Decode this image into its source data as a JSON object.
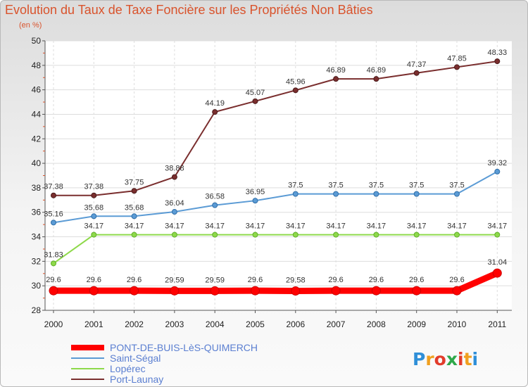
{
  "chart_data": {
    "type": "line",
    "title": "Evolution du Taux de Taxe Foncière sur les Propriétés Non Bâties",
    "ylabel": "(en %)",
    "xlabel": "",
    "x": [
      "2000",
      "2001",
      "2002",
      "2003",
      "2004",
      "2005",
      "2006",
      "2007",
      "2008",
      "2009",
      "2010",
      "2011"
    ],
    "ylim": [
      28,
      50
    ],
    "yticks": [
      28,
      30,
      32,
      34,
      36,
      38,
      40,
      42,
      44,
      46,
      48,
      50
    ],
    "series": [
      {
        "name": "PONT-DE-BUIS-LèS-QUIMERCH",
        "color": "#ff0000",
        "values": [
          29.6,
          29.6,
          29.6,
          29.59,
          29.59,
          29.6,
          29.58,
          29.6,
          29.6,
          29.6,
          29.6,
          31.04
        ],
        "labels": [
          "29.6",
          "29.6",
          "29.6",
          "29.59",
          "29.59",
          "29.6",
          "29.58",
          "29.6",
          "29.6",
          "29.6",
          "29.6",
          "31.04"
        ]
      },
      {
        "name": "Saint-Ségal",
        "color": "#5b9bd5",
        "values": [
          35.16,
          35.68,
          35.68,
          36.04,
          36.58,
          36.95,
          37.5,
          37.5,
          37.5,
          37.5,
          37.5,
          39.32
        ],
        "labels": [
          "35.16",
          "35.68",
          "35.68",
          "36.04",
          "36.58",
          "36.95",
          "37.5",
          "37.5",
          "37.5",
          "37.5",
          "37.5",
          "39.32"
        ]
      },
      {
        "name": "Lopérec",
        "color": "#8ed94a",
        "values": [
          31.83,
          34.17,
          34.17,
          34.17,
          34.17,
          34.17,
          34.17,
          34.17,
          34.17,
          34.17,
          34.17,
          34.17
        ],
        "labels": [
          "31.83",
          "34.17",
          "34.17",
          "34.17",
          "34.17",
          "34.17",
          "34.17",
          "34.17",
          "34.17",
          "34.17",
          "34.17",
          "34.17"
        ]
      },
      {
        "name": "Port-Launay",
        "color": "#7a2e2e",
        "values": [
          37.38,
          37.38,
          37.75,
          38.88,
          44.19,
          45.07,
          45.96,
          46.89,
          46.89,
          47.37,
          47.85,
          48.33
        ],
        "labels": [
          "37.38",
          "37.38",
          "37.75",
          "38.88",
          "44.19",
          "45.07",
          "45.96",
          "46.89",
          "46.89",
          "47.37",
          "47.85",
          "48.33"
        ]
      }
    ],
    "grid": true,
    "legend": "bottom-left"
  },
  "logo": {
    "letters": [
      "P",
      "r",
      "o",
      "x",
      "i",
      "t",
      "i"
    ],
    "colors": [
      "#2f8fd8",
      "#f0a020",
      "#e23c2b",
      "#2ea84a",
      "#e23c2b",
      "#f0a020",
      "#2f8fd8"
    ]
  }
}
